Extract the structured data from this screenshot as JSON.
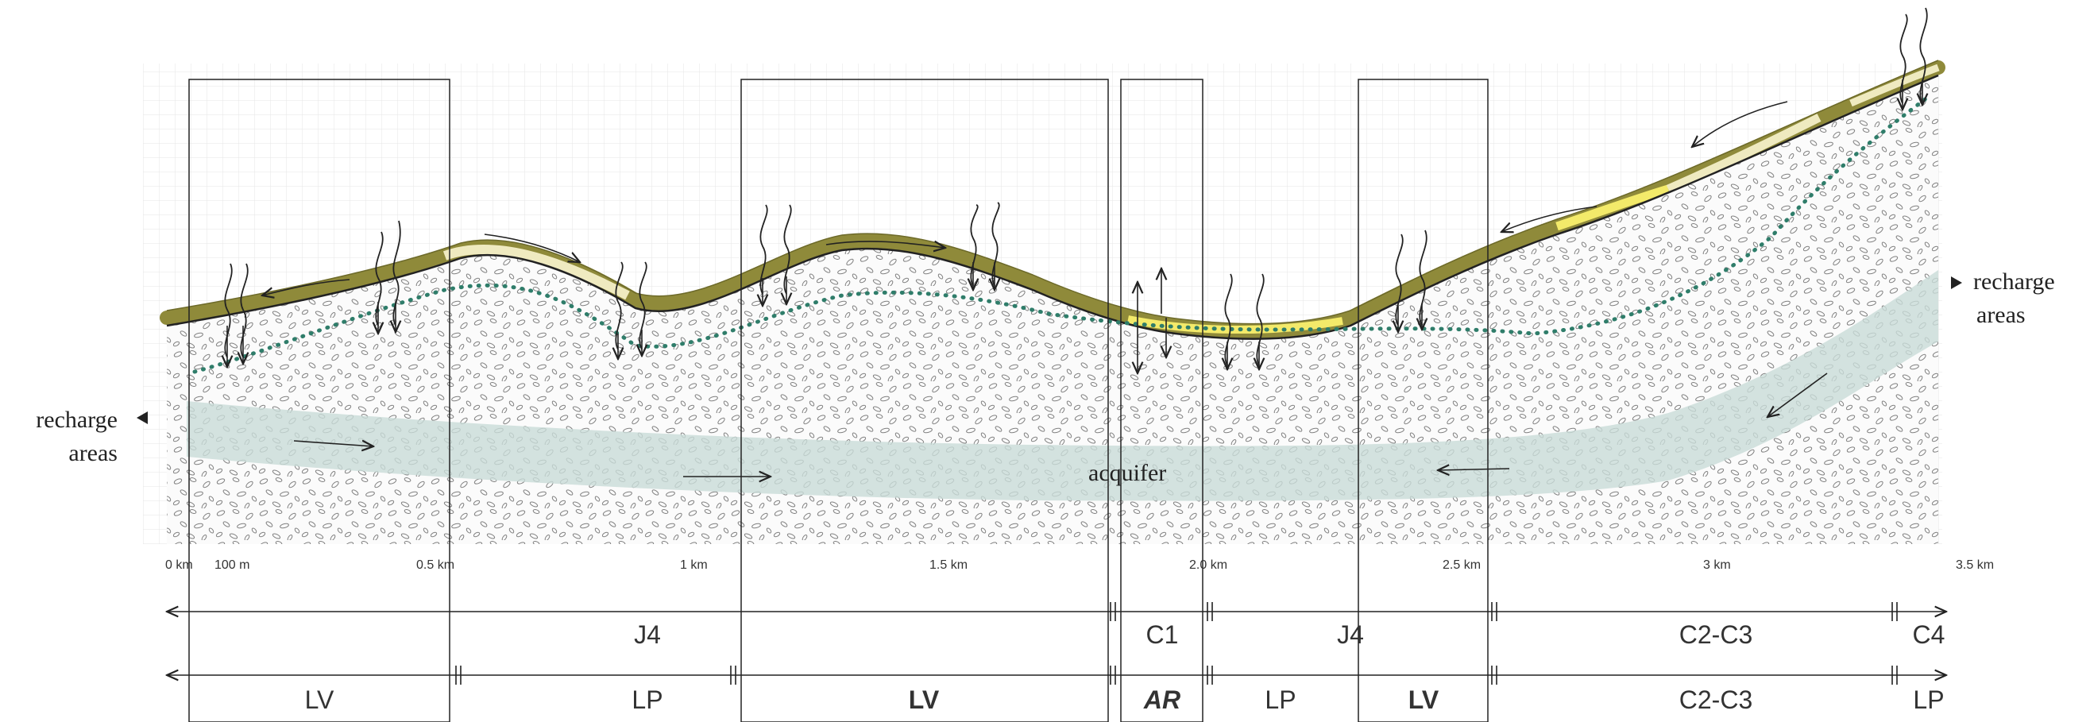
{
  "side_labels": {
    "left": {
      "line1": "recharge",
      "line2": "areas"
    },
    "right": {
      "line1": "recharge",
      "line2": "areas"
    }
  },
  "aquifer_label": "acquifer",
  "distance_ticks": [
    "0 km",
    "100 m",
    "0.5 km",
    "1 km",
    "1.5 km",
    "2.0 km",
    "2.5 km",
    "3 km",
    "3.5 km"
  ],
  "zones_row1": [
    {
      "label": "J4",
      "bold": false,
      "italic": false
    },
    {
      "label": "C1",
      "bold": false,
      "italic": false
    },
    {
      "label": "J4",
      "bold": false,
      "italic": false
    },
    {
      "label": "C2-C3",
      "bold": false,
      "italic": false
    },
    {
      "label": "C4",
      "bold": false,
      "italic": false
    }
  ],
  "zones_row2": [
    {
      "label": "LV",
      "bold": false,
      "italic": false
    },
    {
      "label": "LP",
      "bold": false,
      "italic": false
    },
    {
      "label": "LV",
      "bold": true,
      "italic": false
    },
    {
      "label": "AR",
      "bold": true,
      "italic": true
    },
    {
      "label": "LP",
      "bold": false,
      "italic": false
    },
    {
      "label": "LV",
      "bold": true,
      "italic": false
    },
    {
      "label": "C2-C3",
      "bold": false,
      "italic": false
    },
    {
      "label": "LP",
      "bold": false,
      "italic": false
    }
  ],
  "colors": {
    "soil_dark": "#8f8a3a",
    "soil_mid": "#c9c078",
    "soil_light": "#efeac0",
    "soil_yellow": "#f3ea6a",
    "aquifer": "#c9dcd8",
    "water_table": "#2f7d6a",
    "grid": "#e4e4e4",
    "ink": "#222222"
  }
}
